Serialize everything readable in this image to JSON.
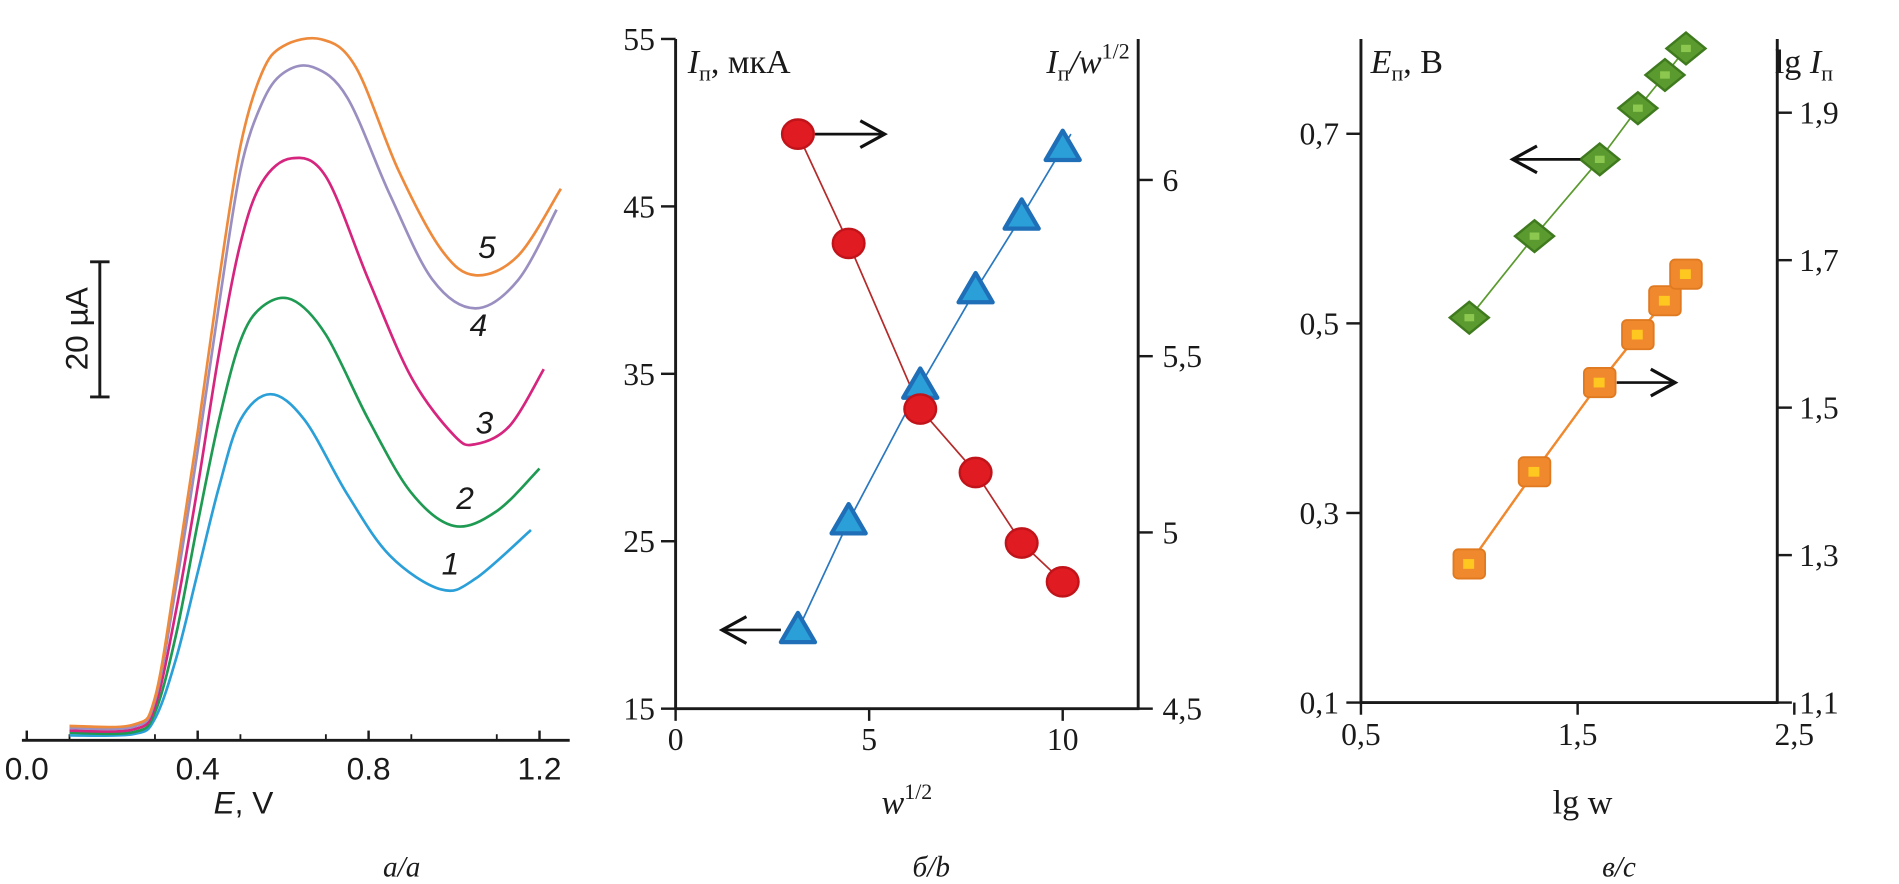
{
  "captions": [
    "а/a",
    "б/b",
    "в/c"
  ],
  "chart_data": [
    {
      "type": "line",
      "panel": "а/a",
      "xlabel_var": "E",
      "xlabel_unit": ", V",
      "xlim": [
        0.0,
        1.27
      ],
      "xticks": [
        "0.0",
        "0.4",
        "0.8",
        "1.2"
      ],
      "ylabel": "",
      "scale_bar": "20 µA",
      "scale_bar_value": 20,
      "y_units": "µA (relative to baseline)",
      "series": [
        {
          "name": "1",
          "color": "#2a9fd8",
          "points": [
            [
              0.1,
              0
            ],
            [
              0.25,
              0.2
            ],
            [
              0.3,
              2.5
            ],
            [
              0.35,
              11.5
            ],
            [
              0.4,
              24.1
            ],
            [
              0.45,
              36.8
            ],
            [
              0.5,
              46.7
            ],
            [
              0.57,
              50.5
            ],
            [
              0.65,
              46.7
            ],
            [
              0.75,
              35.7
            ],
            [
              0.85,
              26.6
            ],
            [
              0.97,
              21.6
            ],
            [
              1.05,
              23.2
            ],
            [
              1.18,
              30.4
            ]
          ]
        },
        {
          "name": "2",
          "color": "#1e9a52",
          "points": [
            [
              0.1,
              0.4
            ],
            [
              0.25,
              0.5
            ],
            [
              0.3,
              3.4
            ],
            [
              0.35,
              15.1
            ],
            [
              0.4,
              31.4
            ],
            [
              0.45,
              46.7
            ],
            [
              0.5,
              58.4
            ],
            [
              0.55,
              63.4
            ],
            [
              0.62,
              64.5
            ],
            [
              0.7,
              59.3
            ],
            [
              0.8,
              46.7
            ],
            [
              0.9,
              35.9
            ],
            [
              1.0,
              31.0
            ],
            [
              1.1,
              33.2
            ],
            [
              1.2,
              39.5
            ]
          ]
        },
        {
          "name": "3",
          "color": "#d6257e",
          "points": [
            [
              0.1,
              0.7
            ],
            [
              0.25,
              0.9
            ],
            [
              0.3,
              4.3
            ],
            [
              0.35,
              18.7
            ],
            [
              0.4,
              36.8
            ],
            [
              0.45,
              56.6
            ],
            [
              0.5,
              72.8
            ],
            [
              0.55,
              81.8
            ],
            [
              0.62,
              85.4
            ],
            [
              0.7,
              82.7
            ],
            [
              0.8,
              67.4
            ],
            [
              0.9,
              53.0
            ],
            [
              1.0,
              44.4
            ],
            [
              1.05,
              43.1
            ],
            [
              1.13,
              45.8
            ],
            [
              1.21,
              54.2
            ]
          ]
        },
        {
          "name": "4",
          "color": "#9a8fc0",
          "points": [
            [
              0.1,
              1.1
            ],
            [
              0.25,
              1.3
            ],
            [
              0.3,
              5.2
            ],
            [
              0.35,
              22.3
            ],
            [
              0.4,
              42.2
            ],
            [
              0.45,
              63.8
            ],
            [
              0.5,
              83.6
            ],
            [
              0.55,
              93.5
            ],
            [
              0.6,
              98.0
            ],
            [
              0.67,
              98.9
            ],
            [
              0.75,
              94.4
            ],
            [
              0.85,
              80.0
            ],
            [
              0.95,
              67.4
            ],
            [
              1.05,
              63.2
            ],
            [
              1.15,
              67.4
            ],
            [
              1.24,
              77.8
            ]
          ]
        },
        {
          "name": "5",
          "color": "#ee8a3c",
          "points": [
            [
              0.1,
              1.4
            ],
            [
              0.25,
              1.6
            ],
            [
              0.3,
              5.6
            ],
            [
              0.35,
              24.1
            ],
            [
              0.4,
              44.9
            ],
            [
              0.45,
              67.4
            ],
            [
              0.5,
              87.2
            ],
            [
              0.55,
              98.0
            ],
            [
              0.6,
              102.0
            ],
            [
              0.69,
              103.0
            ],
            [
              0.77,
              98.9
            ],
            [
              0.87,
              83.6
            ],
            [
              0.97,
              71.9
            ],
            [
              1.05,
              68.1
            ],
            [
              1.15,
              71.0
            ],
            [
              1.25,
              80.9
            ]
          ]
        }
      ]
    },
    {
      "type": "scatter",
      "panel": "б/b",
      "xlabel": "w",
      "xlabel_sup": "1/2",
      "xlim": [
        0,
        12
      ],
      "xticks": [
        "0",
        "5",
        "10"
      ],
      "ylabel_left_var": "I",
      "ylabel_left_sub": "п",
      "ylabel_left_unit": ", мкА",
      "ylim_left": [
        15,
        55
      ],
      "yticks_left": [
        "15",
        "25",
        "35",
        "45",
        "55"
      ],
      "ylabel_right_var": "I",
      "ylabel_right_sub": "п",
      "ylabel_right_mid": "/w",
      "ylabel_right_sup": "1/2",
      "ylim_right": [
        4.5,
        6.4
      ],
      "yticks_right": [
        "4,5",
        "5",
        "5,5",
        "6"
      ],
      "grid": false,
      "series": [
        {
          "axis": "left",
          "marker": "triangle",
          "color": "#2a9fd8",
          "x": [
            3.16,
            4.47,
            6.32,
            7.75,
            8.94,
            10.0
          ],
          "y": [
            19.7,
            26.2,
            34.3,
            40.0,
            44.4,
            48.5
          ]
        },
        {
          "axis": "right",
          "marker": "circle",
          "color": "#e01b22",
          "x": [
            3.16,
            4.47,
            6.32,
            7.75,
            8.94,
            10.0
          ],
          "y": [
            6.13,
            5.82,
            5.35,
            5.17,
            4.97,
            4.86
          ]
        }
      ]
    },
    {
      "type": "scatter",
      "panel": "в/c",
      "xlabel": "lg w",
      "xlim": [
        0.5,
        2.5
      ],
      "xticks": [
        "0,5",
        "1,5",
        "2,5"
      ],
      "ylabel_left_var": "E",
      "ylabel_left_sub": "п",
      "ylabel_left_unit": ", В",
      "ylim_left": [
        0.1,
        0.8
      ],
      "yticks_left": [
        "0,1",
        "0,3",
        "0,5",
        "0,7"
      ],
      "ylabel_right_pre": "lg ",
      "ylabel_right_var": "I",
      "ylabel_right_sub": "п",
      "ylim_right": [
        1.1,
        2.0
      ],
      "yticks_right": [
        "1,1",
        "1,3",
        "1,5",
        "1,7",
        "1,9"
      ],
      "grid": false,
      "series": [
        {
          "axis": "left",
          "marker": "diamond",
          "color": "#5a9a2e",
          "x": [
            1.0,
            1.301,
            1.602,
            1.778,
            1.903,
            2.0
          ],
          "y": [
            0.506,
            0.592,
            0.673,
            0.727,
            0.762,
            0.79
          ]
        },
        {
          "axis": "right",
          "marker": "square",
          "color": "#f0882e",
          "x": [
            1.0,
            1.301,
            1.602,
            1.778,
            1.903,
            2.0
          ],
          "y": [
            1.288,
            1.413,
            1.534,
            1.599,
            1.645,
            1.681
          ]
        }
      ]
    }
  ]
}
